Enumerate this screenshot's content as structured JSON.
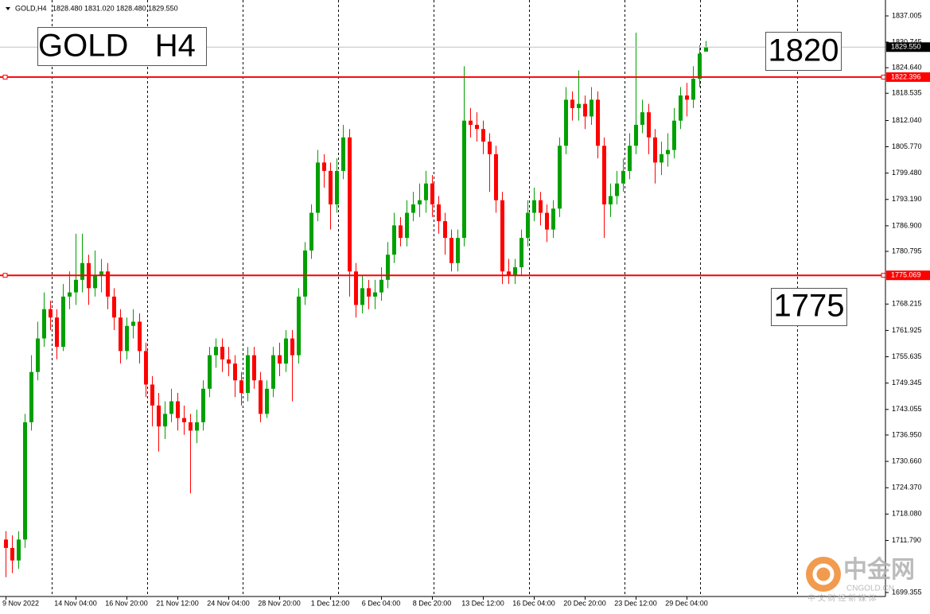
{
  "chart_data": {
    "type": "candlestick",
    "header": {
      "symbol": "GOLD,H4",
      "ohlc": "1828.480 1831.020 1828.480 1829.550"
    },
    "annotations": [
      "GOLD   H4",
      "1820",
      "1775"
    ],
    "categories": [
      "9 Nov 2022",
      null,
      null,
      null,
      null,
      null,
      null,
      null,
      null,
      null,
      null,
      "14 Nov 04:00",
      null,
      null,
      null,
      null,
      null,
      null,
      null,
      "16 Nov 20:00",
      null,
      null,
      null,
      null,
      null,
      null,
      null,
      "21 Nov 12:00",
      null,
      null,
      null,
      null,
      null,
      null,
      null,
      "24 Nov 04:00",
      null,
      null,
      null,
      null,
      null,
      null,
      null,
      "28 Nov 20:00",
      null,
      null,
      null,
      null,
      null,
      null,
      null,
      "1 Dec 12:00",
      null,
      null,
      null,
      null,
      null,
      null,
      null,
      "6 Dec 04:00",
      null,
      null,
      null,
      null,
      null,
      null,
      null,
      "8 Dec 20:00",
      null,
      null,
      null,
      null,
      null,
      null,
      null,
      "13 Dec 12:00",
      null,
      null,
      null,
      null,
      null,
      null,
      null,
      "16 Dec 04:00",
      null,
      null,
      null,
      null,
      null,
      null,
      null,
      "20 Dec 20:00",
      null,
      null,
      null,
      null,
      null,
      null,
      null,
      "23 Dec 12:00",
      null,
      null,
      null,
      null,
      null,
      null,
      null,
      "29 Dec 04:00",
      null,
      null,
      null
    ],
    "up_color": "#00a000",
    "down_color": "#ff0000",
    "open": [
      1712,
      1710,
      1707,
      1712,
      1740,
      1752,
      1760,
      1767,
      1765,
      1758,
      1770,
      1771,
      1774,
      1778,
      1772,
      1775,
      1776,
      1770,
      1765,
      1757,
      1763,
      1764,
      1757,
      1749,
      1744,
      1739,
      1742,
      1745,
      1741,
      1740,
      1738,
      1740,
      1748,
      1756,
      1758,
      1755,
      1754,
      1750,
      1747,
      1756,
      1750,
      1742,
      1748,
      1756,
      1754,
      1760,
      1756,
      1770,
      1781,
      1790,
      1802,
      1800,
      1792,
      1800,
      1808,
      1776,
      1768,
      1772,
      1770,
      1771,
      1774,
      1780,
      1787,
      1784,
      1790,
      1792,
      1793,
      1797,
      1792,
      1788,
      1784,
      1778,
      1784,
      1812,
      1811,
      1810,
      1807,
      1804,
      1793,
      1776,
      1775,
      1777,
      1784,
      1790,
      1793,
      1790,
      1786,
      1791,
      1806,
      1817,
      1815,
      1816,
      1813,
      1817,
      1806,
      1792,
      1794,
      1797,
      1800,
      1806,
      1811,
      1814,
      1808,
      1802,
      1804,
      1805,
      1812,
      1818,
      1817,
      1822,
      1828.48
    ],
    "high": [
      1714,
      1713,
      1714,
      1742,
      1756,
      1764,
      1771,
      1769,
      1767,
      1773,
      1776,
      1785,
      1785,
      1780,
      1781,
      1779,
      1778,
      1772,
      1767,
      1765,
      1767,
      1766,
      1759,
      1751,
      1747,
      1745,
      1748,
      1747,
      1744,
      1742,
      1743,
      1750,
      1758,
      1760,
      1760,
      1758,
      1756,
      1752,
      1758,
      1758,
      1752,
      1750,
      1758,
      1759,
      1762,
      1762,
      1772,
      1783,
      1792,
      1805,
      1804,
      1802,
      1803,
      1811,
      1810,
      1778,
      1775,
      1774,
      1774,
      1777,
      1783,
      1790,
      1789,
      1793,
      1795,
      1797,
      1800,
      1799,
      1794,
      1790,
      1786,
      1786,
      1825,
      1815,
      1814,
      1812,
      1809,
      1806,
      1795,
      1779,
      1779,
      1786,
      1793,
      1796,
      1795,
      1792,
      1793,
      1808,
      1820,
      1819,
      1824,
      1818,
      1820,
      1819,
      1808,
      1797,
      1800,
      1803,
      1809,
      1833,
      1817,
      1816,
      1810,
      1807,
      1809,
      1815,
      1820,
      1821,
      1825,
      1830,
      1831.02
    ],
    "low": [
      1703,
      1704,
      1705,
      1710,
      1738,
      1750,
      1758,
      1762,
      1755,
      1757,
      1767,
      1768,
      1771,
      1768,
      1770,
      1771,
      1767,
      1762,
      1754,
      1755,
      1760,
      1754,
      1746,
      1739,
      1733,
      1736,
      1740,
      1738,
      1737,
      1723,
      1735,
      1738,
      1746,
      1753,
      1752,
      1751,
      1746,
      1744,
      1745,
      1748,
      1740,
      1741,
      1746,
      1751,
      1752,
      1745,
      1754,
      1768,
      1779,
      1788,
      1796,
      1786,
      1790,
      1798,
      1770,
      1765,
      1766,
      1767,
      1767,
      1769,
      1772,
      1778,
      1782,
      1782,
      1788,
      1789,
      1790,
      1789,
      1785,
      1780,
      1776,
      1776,
      1782,
      1808,
      1807,
      1804,
      1795,
      1790,
      1773,
      1773,
      1773,
      1775,
      1782,
      1788,
      1787,
      1783,
      1784,
      1789,
      1804,
      1812,
      1812,
      1810,
      1811,
      1803,
      1784,
      1789,
      1792,
      1795,
      1798,
      1804,
      1809,
      1804,
      1797,
      1799,
      1801,
      1803,
      1810,
      1813,
      1815,
      1820,
      1828.48
    ],
    "close": [
      1710,
      1707,
      1712,
      1740,
      1752,
      1760,
      1767,
      1765,
      1758,
      1770,
      1771,
      1774,
      1778,
      1772,
      1775,
      1776,
      1770,
      1765,
      1757,
      1763,
      1764,
      1757,
      1749,
      1744,
      1739,
      1742,
      1745,
      1741,
      1740,
      1738,
      1740,
      1748,
      1756,
      1758,
      1755,
      1754,
      1750,
      1747,
      1756,
      1750,
      1742,
      1748,
      1756,
      1754,
      1760,
      1756,
      1770,
      1781,
      1790,
      1802,
      1800,
      1792,
      1800,
      1808,
      1776,
      1768,
      1772,
      1770,
      1771,
      1774,
      1780,
      1787,
      1784,
      1790,
      1792,
      1793,
      1797,
      1792,
      1788,
      1784,
      1778,
      1784,
      1812,
      1811,
      1810,
      1807,
      1804,
      1793,
      1776,
      1775,
      1777,
      1784,
      1790,
      1793,
      1790,
      1786,
      1791,
      1806,
      1817,
      1815,
      1816,
      1813,
      1817,
      1806,
      1792,
      1794,
      1797,
      1800,
      1806,
      1811,
      1814,
      1808,
      1802,
      1804,
      1805,
      1812,
      1818,
      1817,
      1822,
      1828,
      1829.55
    ],
    "ylim": [
      1698.4,
      1840.8
    ],
    "yticks": [
      1837.005,
      1830.745,
      {
        "value": 1824.64,
        "label": "1824.640"
      },
      1818.535,
      {
        "value": 1812.04,
        "label": "1812.040"
      },
      {
        "value": 1805.77,
        "label": "1805.770"
      },
      {
        "value": 1799.48,
        "label": "1799.480"
      },
      {
        "value": 1793.19,
        "label": "1793.190"
      },
      {
        "value": 1786.9,
        "label": "1786.900"
      },
      1780.795,
      1768.215,
      1761.925,
      1755.635,
      1749.345,
      1743.055,
      {
        "value": 1736.95,
        "label": "1736.950"
      },
      {
        "value": 1730.66,
        "label": "1730.660"
      },
      {
        "value": 1724.37,
        "label": "1724.370"
      },
      {
        "value": 1718.08,
        "label": "1718.080"
      },
      {
        "value": 1711.79,
        "label": "1711.790"
      },
      1699.355
    ],
    "current_price": {
      "value": 1829.55,
      "label": "1829.550"
    },
    "price_lines": [
      {
        "value": 1822.396,
        "label": "1822.396",
        "color": "#ff0000"
      },
      {
        "value": 1775.069,
        "label": "1775.069",
        "color": "#ff0000"
      }
    ]
  },
  "watermark": {
    "name": "中金网",
    "site": "CNGOLD.CN",
    "slogan": "中 文 财 经 新 媒 体"
  }
}
